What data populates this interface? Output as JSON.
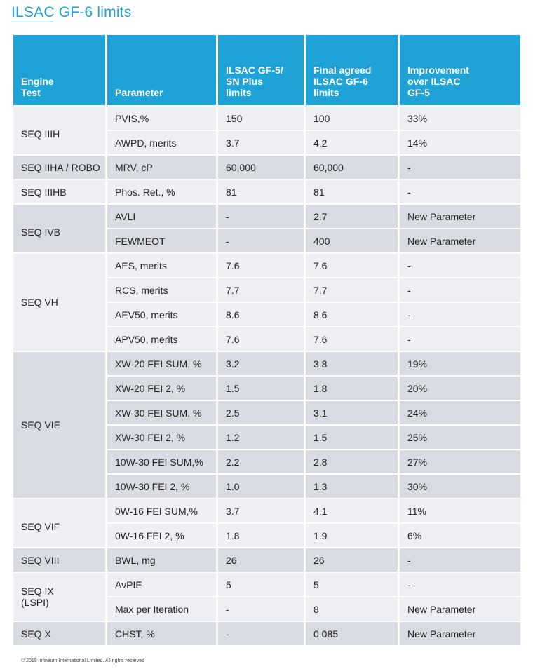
{
  "title": "ILSAC GF-6 limits",
  "headers": {
    "engine_test": [
      "Engine",
      "Test"
    ],
    "parameter": [
      "Parameter"
    ],
    "gf5": [
      "ILSAC GF-5/",
      "SN Plus",
      "limits"
    ],
    "gf6": [
      "Final agreed",
      "ILSAC GF-6",
      "limits"
    ],
    "improvement": [
      "Improvement",
      "over ILSAC",
      "GF-5"
    ]
  },
  "groups": [
    {
      "test": [
        "SEQ IIIH"
      ],
      "align": "top",
      "rows": [
        {
          "parameter": "PVIS,%",
          "gf5": "150",
          "gf6": "100",
          "improvement": "33%"
        },
        {
          "parameter": "AWPD, merits",
          "gf5": "3.7",
          "gf6": "4.2",
          "improvement": "14%"
        }
      ]
    },
    {
      "test": [
        "SEQ IIHA / ROBO"
      ],
      "align": "middle",
      "rows": [
        {
          "parameter": "MRV, cP",
          "gf5": "60,000",
          "gf6": "60,000",
          "improvement": "-"
        }
      ]
    },
    {
      "test": [
        "SEQ IIIHB"
      ],
      "align": "middle",
      "rows": [
        {
          "parameter": "Phos. Ret., %",
          "gf5": "81",
          "gf6": "81",
          "improvement": "-"
        }
      ]
    },
    {
      "test": [
        "SEQ IVB"
      ],
      "align": "top",
      "rows": [
        {
          "parameter": "AVLI",
          "gf5": "-",
          "gf6": "2.7",
          "improvement": "New  Parameter"
        },
        {
          "parameter": "FEWMEOT",
          "gf5": "-",
          "gf6": "400",
          "improvement": "New  Parameter"
        }
      ]
    },
    {
      "test": [
        "SEQ VH"
      ],
      "align": "middle",
      "rows": [
        {
          "parameter": "AES, merits",
          "gf5": "7.6",
          "gf6": "7.6",
          "improvement": "-"
        },
        {
          "parameter": "RCS, merits",
          "gf5": "7.7",
          "gf6": "7.7",
          "improvement": "-"
        },
        {
          "parameter": "AEV50, merits",
          "gf5": "8.6",
          "gf6": "8.6",
          "improvement": "-"
        },
        {
          "parameter": "APV50, merits",
          "gf5": "7.6",
          "gf6": "7.6",
          "improvement": "-"
        }
      ]
    },
    {
      "test": [
        "SEQ VIE"
      ],
      "align": "middle",
      "rows": [
        {
          "parameter": "XW-20 FEI SUM, %",
          "gf5": "3.2",
          "gf6": "3.8",
          "improvement": "19%"
        },
        {
          "parameter": "XW-20 FEI 2, %",
          "gf5": "1.5",
          "gf6": "1.8",
          "improvement": "20%"
        },
        {
          "parameter": "XW-30 FEI SUM, %",
          "gf5": "2.5",
          "gf6": "3.1",
          "improvement": "24%"
        },
        {
          "parameter": "XW-30 FEI 2, %",
          "gf5": "1.2",
          "gf6": "1.5",
          "improvement": "25%"
        },
        {
          "parameter": "10W-30 FEI SUM,%",
          "gf5": "2.2",
          "gf6": "2.8",
          "improvement": "27%"
        },
        {
          "parameter": "10W-30 FEI 2, %",
          "gf5": "1.0",
          "gf6": "1.3",
          "improvement": "30%"
        }
      ]
    },
    {
      "test": [
        "SEQ VIF"
      ],
      "align": "top",
      "rows": [
        {
          "parameter": "0W-16 FEI SUM,%",
          "gf5": "3.7",
          "gf6": "4.1",
          "improvement": "11%"
        },
        {
          "parameter": "0W-16 FEI 2, %",
          "gf5": "1.8",
          "gf6": "1.9",
          "improvement": "6%"
        }
      ]
    },
    {
      "test": [
        "SEQ VIII"
      ],
      "align": "middle",
      "rows": [
        {
          "parameter": "BWL, mg",
          "gf5": "26",
          "gf6": "26",
          "improvement": "-"
        }
      ]
    },
    {
      "test": [
        "SEQ IX",
        "(LSPI)"
      ],
      "align": "middle",
      "rows": [
        {
          "parameter": "AvPIE",
          "gf5": "5",
          "gf6": "5",
          "improvement": "-"
        },
        {
          "parameter": "Max per Iteration",
          "gf5": "-",
          "gf6": "8",
          "improvement": "New  Parameter"
        }
      ]
    },
    {
      "test": [
        "SEQ X"
      ],
      "align": "middle",
      "rows": [
        {
          "parameter": "CHST, %",
          "gf5": "-",
          "gf6": "0.085",
          "improvement": "New  Parameter"
        }
      ]
    }
  ],
  "footer": "© 2019 Infineum International Limited. All rights reserved",
  "colors": {
    "header_bg": "#1fa3d6",
    "band_light": "#eeeff3",
    "band_dark": "#d9dbe3",
    "title": "#1fa3d6"
  }
}
